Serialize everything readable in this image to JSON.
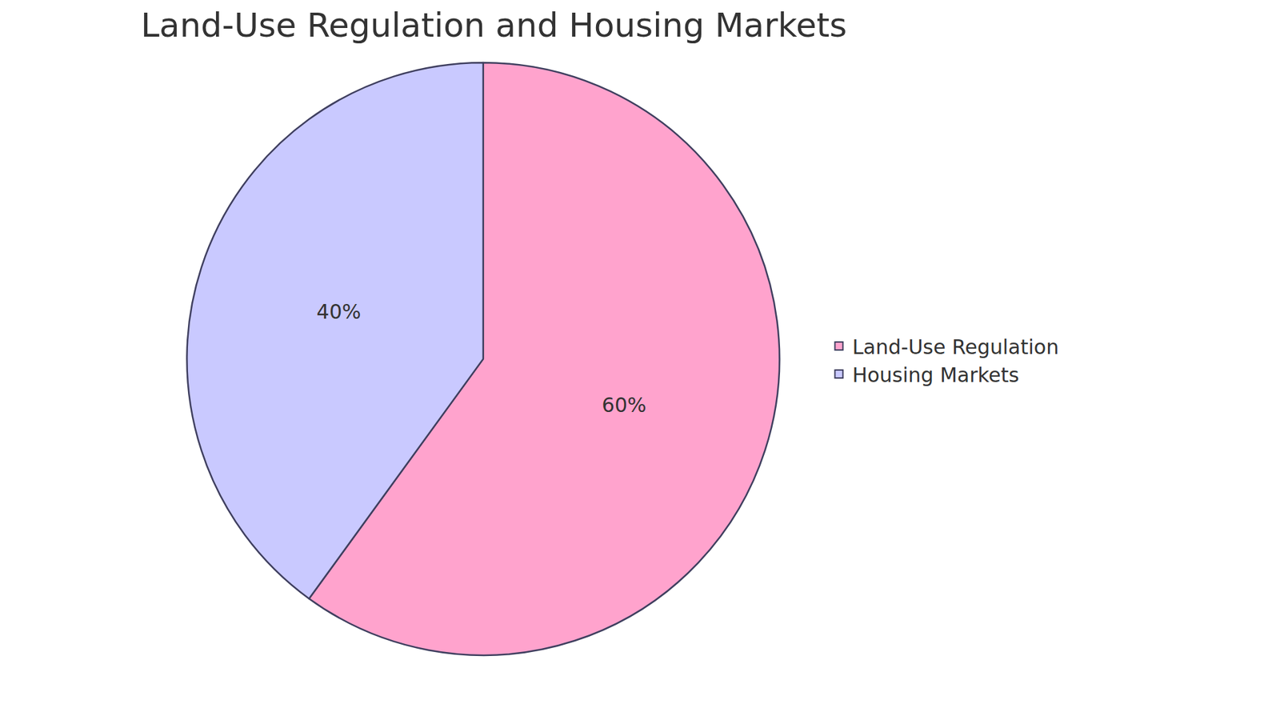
{
  "chart_data": {
    "type": "pie",
    "title": "Land-Use Regulation and Housing Markets",
    "categories": [
      "Land-Use Regulation",
      "Housing Markets"
    ],
    "values": [
      60,
      40
    ],
    "value_labels": [
      "60%",
      "40%"
    ],
    "colors": [
      "#ffa3cd",
      "#c9c9ff"
    ],
    "data_labels": true,
    "legend": "right"
  }
}
